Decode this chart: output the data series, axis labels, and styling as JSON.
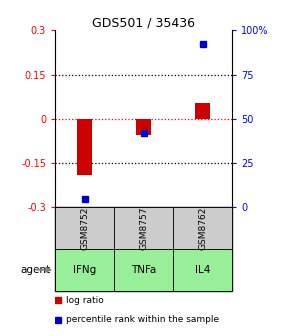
{
  "title": "GDS501 / 35436",
  "samples": [
    "GSM8752",
    "GSM8757",
    "GSM8762"
  ],
  "agents": [
    "IFNg",
    "TNFa",
    "IL4"
  ],
  "log_ratios": [
    -0.19,
    -0.055,
    0.055
  ],
  "percentile_ranks": [
    5,
    42,
    92
  ],
  "bar_color": "#cc0000",
  "dot_color": "#0000cc",
  "ylim_left": [
    -0.3,
    0.3
  ],
  "ylim_right": [
    0,
    100
  ],
  "yticks_left": [
    -0.3,
    -0.15,
    0,
    0.15,
    0.3
  ],
  "yticks_right": [
    0,
    25,
    50,
    75,
    100
  ],
  "ytick_labels_right": [
    "0",
    "25",
    "50",
    "75",
    "100%"
  ],
  "hline_dotted_black": [
    -0.15,
    0.15
  ],
  "hline_dotted_red": [
    0
  ],
  "sample_bg_color": "#cccccc",
  "agent_bg_color": "#99ee99",
  "agent_label": "agent",
  "legend_log": "log ratio",
  "legend_pct": "percentile rank within the sample",
  "bar_width": 0.25
}
